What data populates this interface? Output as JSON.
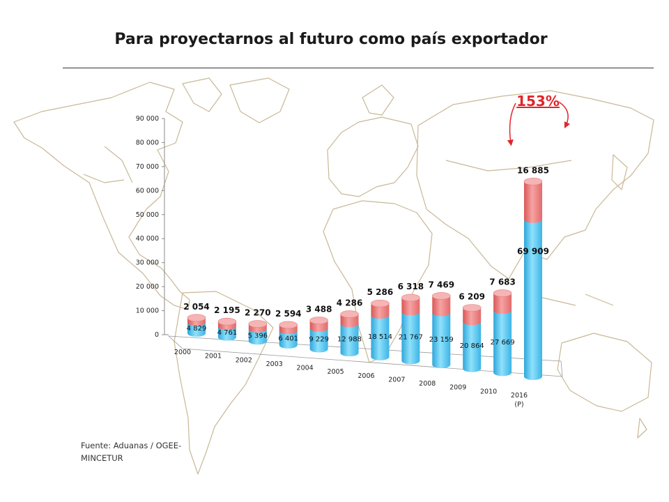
{
  "title": "Para proyectarnos al futuro como país exportador",
  "source": "Fuente: Aduanas / OGEE-MINCETUR",
  "chart_data": {
    "type": "bar",
    "stacked": true,
    "categories": [
      "2000",
      "2001",
      "2002",
      "2003",
      "2004",
      "2005",
      "2006",
      "2007",
      "2008",
      "2009",
      "2010",
      "2016"
    ],
    "category_sublabels": [
      "",
      "",
      "",
      "",
      "",
      "",
      "",
      "",
      "",
      "",
      "",
      "(P)"
    ],
    "series": [
      {
        "values": [
          4829,
          4761,
          5396,
          6401,
          9229,
          12988,
          18514,
          21767,
          23159,
          20864,
          27669,
          69909
        ],
        "labels": [
          "4 829",
          "4 761",
          "5 396",
          "6 401",
          "9 229",
          "12 988",
          "18 514",
          "21 767",
          "23 159",
          "20 864",
          "27 669",
          "69 909"
        ],
        "color": "#5bc8f0"
      },
      {
        "values": [
          2054,
          2195,
          2270,
          2594,
          3488,
          4286,
          5286,
          6318,
          7469,
          6209,
          7683,
          16885
        ],
        "labels": [
          "2 054",
          "2 195",
          "2 270",
          "2 594",
          "3 488",
          "4 286",
          "5 286",
          "6 318",
          "7 469",
          "6 209",
          "7 683",
          "16 885"
        ],
        "color": "#f07c7c"
      }
    ],
    "ylim": [
      0,
      90000
    ],
    "yticks": [
      0,
      10000,
      20000,
      30000,
      40000,
      50000,
      60000,
      70000,
      80000,
      90000
    ],
    "ytick_labels": [
      "0",
      "10 000",
      "20 000",
      "30 000",
      "40 000",
      "50 000",
      "60 000",
      "70 000",
      "80 000",
      "90 000"
    ],
    "annotation": {
      "text": "153%",
      "color": "#e0262b"
    },
    "background": "world map outline",
    "colors": {
      "accent_arrow": "#e0262b",
      "map_line": "#c8b896"
    }
  }
}
